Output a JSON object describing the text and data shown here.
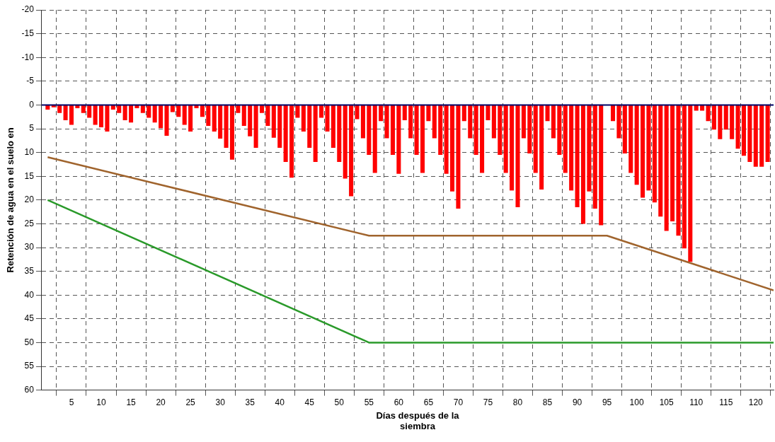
{
  "chart_data": {
    "type": "bar",
    "xlabel": "Días después de la siembra",
    "ylabel": "Retención de agua en el suelo en",
    "xlim": [
      0,
      123
    ],
    "xticks": [
      5,
      10,
      15,
      20,
      25,
      30,
      35,
      40,
      45,
      50,
      55,
      60,
      65,
      70,
      75,
      80,
      85,
      90,
      95,
      100,
      105,
      110,
      115,
      120
    ],
    "ref_lines": [
      {
        "axis": "y",
        "value": 0,
        "color": "#000066"
      }
    ],
    "ylim": [
      60,
      -20
    ],
    "yticks": [
      -20,
      -15,
      -10,
      -5,
      0,
      5,
      10,
      15,
      20,
      25,
      30,
      35,
      40,
      45,
      50,
      55,
      60
    ],
    "grid": true,
    "series": [
      {
        "type": "bar",
        "color": "#ff0000",
        "x": [
          1,
          2,
          3,
          4,
          5,
          6,
          7,
          8,
          9,
          10,
          11,
          12,
          13,
          14,
          15,
          16,
          17,
          18,
          19,
          20,
          21,
          22,
          23,
          24,
          25,
          26,
          27,
          28,
          29,
          30,
          31,
          32,
          33,
          34,
          35,
          36,
          37,
          38,
          39,
          40,
          41,
          42,
          43,
          44,
          45,
          46,
          47,
          48,
          49,
          50,
          51,
          52,
          53,
          54,
          55,
          56,
          57,
          58,
          59,
          60,
          61,
          62,
          63,
          64,
          65,
          66,
          67,
          68,
          69,
          70,
          71,
          72,
          73,
          74,
          75,
          76,
          77,
          78,
          79,
          80,
          81,
          82,
          83,
          84,
          85,
          86,
          87,
          88,
          89,
          90,
          91,
          92,
          93,
          94,
          95,
          96,
          97,
          98,
          99,
          100,
          101,
          102,
          103,
          104,
          105,
          106,
          107,
          108,
          109,
          110,
          111,
          112,
          113,
          114,
          115,
          116,
          117,
          118,
          119,
          120,
          121,
          122
        ],
        "values": [
          1,
          0.5,
          1.7,
          3.2,
          4.2,
          0.7,
          1.7,
          2.7,
          4.2,
          4.7,
          5.6,
          1,
          1.7,
          3.2,
          3.7,
          0.7,
          1.7,
          2.7,
          3.7,
          4.9,
          6.5,
          1.5,
          2.5,
          4.2,
          5.6,
          0.7,
          2.5,
          4.4,
          5.6,
          7.1,
          9,
          11.5,
          1.7,
          4.4,
          6.6,
          9,
          1.7,
          4.4,
          6.9,
          9,
          12,
          15.3,
          2.7,
          5.6,
          9,
          12,
          2.7,
          5.6,
          9,
          12,
          15.5,
          19.2,
          3,
          7,
          10.5,
          14.3,
          3.4,
          7,
          10.5,
          14.5,
          3.2,
          7,
          10.5,
          14.3,
          3.4,
          7,
          10.5,
          14.5,
          18.2,
          21.8,
          3.4,
          7,
          10.5,
          14.3,
          3.2,
          7,
          10.5,
          14.3,
          18,
          21.5,
          7,
          10.2,
          14.3,
          17.8,
          3.4,
          7,
          10.5,
          14.3,
          18,
          21.5,
          25,
          18.2,
          21.8,
          25.3,
          0,
          3.4,
          7,
          10.2,
          14.3,
          16.8,
          19.5,
          18,
          20.5,
          23.5,
          26.5,
          24.5,
          27.5,
          30.2,
          33,
          1.2,
          1.2,
          3.4,
          5.2,
          7.2,
          5.2,
          7.2,
          9.2,
          10.7,
          12,
          13,
          13,
          12
        ]
      },
      {
        "type": "line",
        "color": "#a0642d",
        "x": [
          1,
          55,
          95,
          123
        ],
        "values": [
          11,
          27.5,
          27.5,
          39
        ]
      },
      {
        "type": "line",
        "color": "#2a9a2a",
        "x": [
          1,
          55,
          123
        ],
        "values": [
          20,
          50,
          50
        ]
      }
    ]
  }
}
